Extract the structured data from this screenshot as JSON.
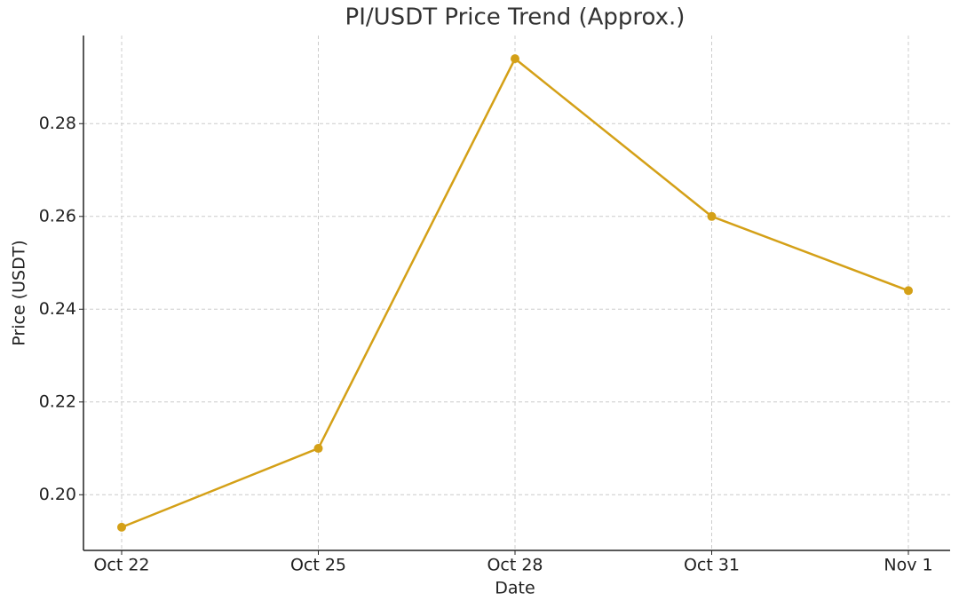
{
  "chart_data": {
    "type": "line",
    "title": "PI/USDT Price Trend (Approx.)",
    "x_label": "Date",
    "y_label": "Price (USDT)",
    "categories": [
      "Oct 22",
      "Oct 25",
      "Oct 28",
      "Oct 31",
      "Nov 1"
    ],
    "series": [
      {
        "name": "PI/USDT",
        "color": "#d4a017",
        "values": [
          0.193,
          0.21,
          0.294,
          0.26,
          0.244
        ]
      }
    ],
    "ylim": [
      0.188,
      0.299
    ],
    "yticks": [
      {
        "value": 0.2,
        "label": "0.20"
      },
      0.22,
      0.24,
      0.26,
      0.28
    ],
    "grid": true
  }
}
